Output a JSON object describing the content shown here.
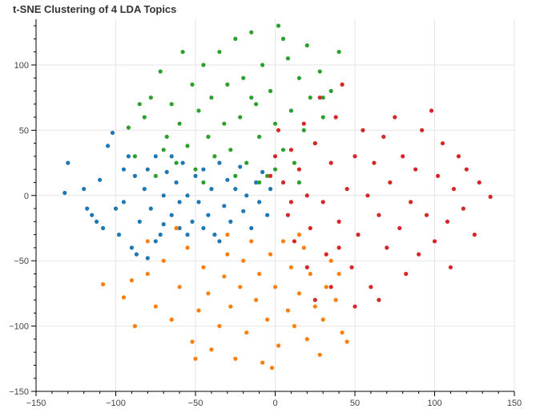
{
  "chart_data": {
    "type": "scatter",
    "title": "t-SNE Clustering of 4 LDA Topics",
    "xlabel": "",
    "ylabel": "",
    "xlim": [
      -150,
      150
    ],
    "ylim": [
      -150,
      135
    ],
    "x_ticks": [
      -150,
      -100,
      -50,
      0,
      50,
      100,
      150
    ],
    "y_ticks": [
      100,
      50,
      0,
      -50,
      -100,
      -150
    ],
    "x_tick_labels": [
      "−150",
      "−100",
      "−50",
      "0",
      "50",
      "100",
      "150"
    ],
    "y_tick_labels": [
      "100",
      "50",
      "0",
      "−50",
      "−100",
      "−150"
    ],
    "grid": true,
    "legend": "none",
    "series": [
      {
        "color": "#1f77b4",
        "points": [
          [
            -130,
            25
          ],
          [
            -132,
            2
          ],
          [
            -120,
            5
          ],
          [
            -118,
            -10
          ],
          [
            -112,
            -20
          ],
          [
            -110,
            12
          ],
          [
            -105,
            38
          ],
          [
            -102,
            48
          ],
          [
            -98,
            -30
          ],
          [
            -95,
            -5
          ],
          [
            -92,
            30
          ],
          [
            -90,
            -40
          ],
          [
            -88,
            15
          ],
          [
            -85,
            -20
          ],
          [
            -82,
            5
          ],
          [
            -80,
            20
          ],
          [
            -78,
            -10
          ],
          [
            -75,
            30
          ],
          [
            -72,
            -30
          ],
          [
            -70,
            0
          ],
          [
            -68,
            18
          ],
          [
            -65,
            -15
          ],
          [
            -62,
            10
          ],
          [
            -60,
            -25
          ],
          [
            -58,
            25
          ],
          [
            -55,
            0
          ],
          [
            -52,
            -20
          ],
          [
            -50,
            15
          ],
          [
            -48,
            -5
          ],
          [
            -45,
            20
          ],
          [
            -42,
            -15
          ],
          [
            -40,
            5
          ],
          [
            -38,
            -30
          ],
          [
            -35,
            25
          ],
          [
            -32,
            -8
          ],
          [
            -30,
            12
          ],
          [
            -28,
            -20
          ],
          [
            -25,
            5
          ],
          [
            -22,
            22
          ],
          [
            -20,
            -12
          ],
          [
            -18,
            0
          ],
          [
            -15,
            -25
          ],
          [
            -12,
            10
          ],
          [
            -10,
            -5
          ],
          [
            -8,
            18
          ],
          [
            -5,
            -15
          ],
          [
            -3,
            5
          ],
          [
            -100,
            -10
          ],
          [
            -108,
            -25
          ],
          [
            -115,
            -15
          ],
          [
            -95,
            20
          ],
          [
            -87,
            -45
          ],
          [
            -75,
            -35
          ],
          [
            -65,
            30
          ],
          [
            -55,
            -30
          ],
          [
            -45,
            -25
          ],
          [
            -35,
            -35
          ],
          [
            -60,
            -5
          ],
          [
            -70,
            -22
          ],
          [
            -80,
            -48
          ]
        ]
      },
      {
        "color": "#ff7f0e",
        "points": [
          [
            -108,
            -68
          ],
          [
            -95,
            -78
          ],
          [
            -88,
            -100
          ],
          [
            -80,
            -60
          ],
          [
            -75,
            -85
          ],
          [
            -70,
            -50
          ],
          [
            -65,
            -95
          ],
          [
            -60,
            -70
          ],
          [
            -55,
            -40
          ],
          [
            -52,
            -112
          ],
          [
            -48,
            -88
          ],
          [
            -45,
            -55
          ],
          [
            -42,
            -75
          ],
          [
            -40,
            -118
          ],
          [
            -35,
            -100
          ],
          [
            -32,
            -62
          ],
          [
            -30,
            -45
          ],
          [
            -28,
            -85
          ],
          [
            -25,
            -125
          ],
          [
            -22,
            -70
          ],
          [
            -20,
            -50
          ],
          [
            -18,
            -105
          ],
          [
            -15,
            -35
          ],
          [
            -12,
            -80
          ],
          [
            -10,
            -60
          ],
          [
            -8,
            -128
          ],
          [
            -5,
            -95
          ],
          [
            -3,
            -45
          ],
          [
            0,
            -70
          ],
          [
            2,
            -115
          ],
          [
            5,
            -35
          ],
          [
            8,
            -88
          ],
          [
            10,
            -55
          ],
          [
            12,
            -100
          ],
          [
            15,
            -75
          ],
          [
            18,
            -40
          ],
          [
            20,
            -110
          ],
          [
            22,
            -60
          ],
          [
            25,
            -85
          ],
          [
            28,
            -122
          ],
          [
            30,
            -95
          ],
          [
            32,
            -70
          ],
          [
            35,
            -50
          ],
          [
            38,
            -80
          ],
          [
            42,
            -105
          ],
          [
            45,
            -112
          ],
          [
            -62,
            -25
          ],
          [
            -90,
            -65
          ],
          [
            -50,
            -125
          ],
          [
            -2,
            -132
          ],
          [
            -30,
            -30
          ],
          [
            15,
            -30
          ],
          [
            40,
            -60
          ],
          [
            -80,
            -35
          ]
        ]
      },
      {
        "color": "#2ca02c",
        "points": [
          [
            -88,
            30
          ],
          [
            -82,
            60
          ],
          [
            -78,
            75
          ],
          [
            -75,
            15
          ],
          [
            -72,
            95
          ],
          [
            -68,
            45
          ],
          [
            -65,
            70
          ],
          [
            -62,
            25
          ],
          [
            -60,
            55
          ],
          [
            -58,
            110
          ],
          [
            -55,
            38
          ],
          [
            -52,
            85
          ],
          [
            -50,
            20
          ],
          [
            -48,
            65
          ],
          [
            -45,
            100
          ],
          [
            -42,
            45
          ],
          [
            -40,
            75
          ],
          [
            -38,
            30
          ],
          [
            -35,
            110
          ],
          [
            -32,
            55
          ],
          [
            -30,
            85
          ],
          [
            -28,
            35
          ],
          [
            -25,
            120
          ],
          [
            -22,
            60
          ],
          [
            -20,
            90
          ],
          [
            -18,
            25
          ],
          [
            -15,
            125
          ],
          [
            -12,
            70
          ],
          [
            -10,
            45
          ],
          [
            -8,
            100
          ],
          [
            -5,
            15
          ],
          [
            -3,
            80
          ],
          [
            0,
            55
          ],
          [
            2,
            130
          ],
          [
            5,
            35
          ],
          [
            8,
            105
          ],
          [
            10,
            65
          ],
          [
            12,
            25
          ],
          [
            15,
            90
          ],
          [
            18,
            50
          ],
          [
            20,
            115
          ],
          [
            22,
            75
          ],
          [
            25,
            40
          ],
          [
            28,
            95
          ],
          [
            30,
            60
          ],
          [
            35,
            80
          ],
          [
            40,
            110
          ],
          [
            -92,
            52
          ],
          [
            -70,
            35
          ],
          [
            -25,
            15
          ],
          [
            -10,
            10
          ],
          [
            0,
            20
          ],
          [
            15,
            10
          ],
          [
            -45,
            10
          ],
          [
            -85,
            70
          ],
          [
            5,
            120
          ],
          [
            30,
            75
          ],
          [
            -15,
            75
          ]
        ]
      },
      {
        "color": "#d62728",
        "points": [
          [
            0,
            30
          ],
          [
            2,
            50
          ],
          [
            5,
            10
          ],
          [
            8,
            -15
          ],
          [
            10,
            35
          ],
          [
            12,
            -35
          ],
          [
            15,
            20
          ],
          [
            18,
            55
          ],
          [
            20,
            0
          ],
          [
            22,
            -25
          ],
          [
            25,
            40
          ],
          [
            28,
            75
          ],
          [
            30,
            -5
          ],
          [
            32,
            -45
          ],
          [
            35,
            25
          ],
          [
            38,
            60
          ],
          [
            40,
            -20
          ],
          [
            42,
            85
          ],
          [
            45,
            5
          ],
          [
            48,
            -55
          ],
          [
            50,
            30
          ],
          [
            52,
            -30
          ],
          [
            55,
            50
          ],
          [
            58,
            0
          ],
          [
            60,
            -70
          ],
          [
            62,
            25
          ],
          [
            65,
            -15
          ],
          [
            68,
            45
          ],
          [
            70,
            -40
          ],
          [
            72,
            10
          ],
          [
            75,
            60
          ],
          [
            78,
            -25
          ],
          [
            80,
            30
          ],
          [
            82,
            -60
          ],
          [
            85,
            -5
          ],
          [
            88,
            20
          ],
          [
            90,
            -45
          ],
          [
            92,
            50
          ],
          [
            95,
            -15
          ],
          [
            98,
            65
          ],
          [
            100,
            -35
          ],
          [
            102,
            15
          ],
          [
            105,
            40
          ],
          [
            108,
            -20
          ],
          [
            110,
            -55
          ],
          [
            112,
            5
          ],
          [
            115,
            30
          ],
          [
            118,
            -10
          ],
          [
            120,
            20
          ],
          [
            125,
            -30
          ],
          [
            128,
            10
          ],
          [
            135,
            -1
          ],
          [
            25,
            -80
          ],
          [
            35,
            -70
          ],
          [
            50,
            -85
          ],
          [
            65,
            -80
          ],
          [
            20,
            -55
          ],
          [
            40,
            -40
          ],
          [
            -3,
            15
          ],
          [
            10,
            -5
          ]
        ]
      }
    ]
  }
}
